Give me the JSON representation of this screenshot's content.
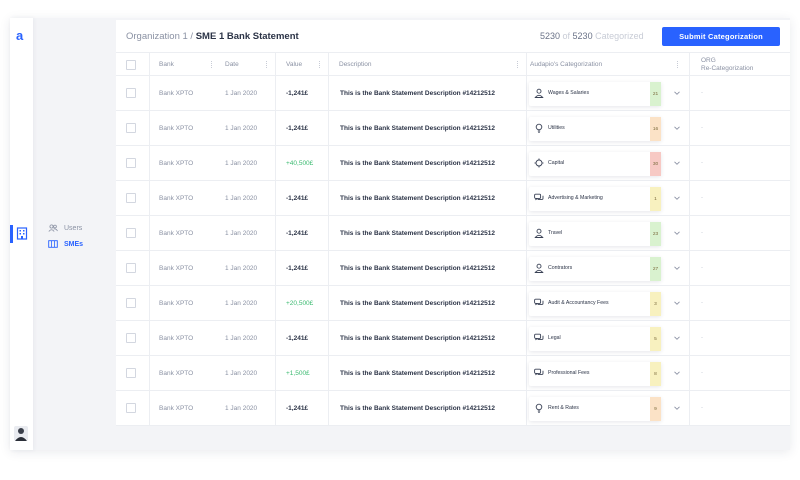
{
  "app": {
    "logo_text": "a"
  },
  "sidebar": {
    "icons": [
      "building-icon"
    ],
    "items": [
      {
        "label": "Users",
        "icon": "users-icon",
        "active": false
      },
      {
        "label": "SMEs",
        "icon": "smes-icon",
        "active": true
      }
    ]
  },
  "header": {
    "breadcrumb_org": "Organization 1",
    "breadcrumb_sep": " / ",
    "page_title": "SME 1 Bank Statement",
    "counter_categorized": "5230",
    "counter_of": " of ",
    "counter_total": "5230",
    "counter_suffix": " Categorized",
    "submit_label": "Submit Categorization"
  },
  "table": {
    "columns": {
      "bank": "Bank",
      "date": "Date",
      "value": "Value",
      "description": "Description",
      "audapio": "Audapio's Categorization",
      "org_line1": "ORG",
      "org_line2": "Re-Categorization"
    },
    "rows": [
      {
        "bank": "Bank XPTO",
        "date": "1 Jan 2020",
        "value": "-1,241£",
        "positive": false,
        "description": "This is the Bank Statement Description #14212512",
        "category": "Wages & Salaries",
        "icon": "person-icon",
        "score": "21",
        "score_color": "#d9f2cf",
        "org": "-"
      },
      {
        "bank": "Bank XPTO",
        "date": "1 Jan 2020",
        "value": "-1,241£",
        "positive": false,
        "description": "This is the Bank Statement Description #14212512",
        "category": "Utilities",
        "icon": "lightbulb-icon",
        "score": "16",
        "score_color": "#fbe2c6",
        "org": "-"
      },
      {
        "bank": "Bank XPTO",
        "date": "1 Jan 2020",
        "value": "+40,500£",
        "positive": true,
        "description": "This is the Bank Statement Description #14212512",
        "category": "Capital",
        "icon": "target-icon",
        "score": "30",
        "score_color": "#f7c9c4",
        "org": "-"
      },
      {
        "bank": "Bank XPTO",
        "date": "1 Jan 2020",
        "value": "-1,241£",
        "positive": false,
        "description": "This is the Bank Statement Description #14212512",
        "category": "Advertising & Marketing",
        "icon": "chat-icon",
        "score": "1",
        "score_color": "#f8f1bf",
        "org": "-"
      },
      {
        "bank": "Bank XPTO",
        "date": "1 Jan 2020",
        "value": "-1,241£",
        "positive": false,
        "description": "This is the Bank Statement Description #14212512",
        "category": "Travel",
        "icon": "person-icon",
        "score": "23",
        "score_color": "#d9f2cf",
        "org": "-"
      },
      {
        "bank": "Bank XPTO",
        "date": "1 Jan 2020",
        "value": "-1,241£",
        "positive": false,
        "description": "This is the Bank Statement Description #14212512",
        "category": "Contrators",
        "icon": "person-icon",
        "score": "27",
        "score_color": "#d9f2cf",
        "org": "-"
      },
      {
        "bank": "Bank XPTO",
        "date": "1 Jan 2020",
        "value": "+20,500£",
        "positive": true,
        "description": "This is the Bank Statement Description #14212512",
        "category": "Audit & Accountancy Fees",
        "icon": "chat-icon",
        "score": "3",
        "score_color": "#f8f1bf",
        "org": "-"
      },
      {
        "bank": "Bank XPTO",
        "date": "1 Jan 2020",
        "value": "-1,241£",
        "positive": false,
        "description": "This is the Bank Statement Description #14212512",
        "category": "Legal",
        "icon": "chat-icon",
        "score": "5",
        "score_color": "#f8f1bf",
        "org": "-"
      },
      {
        "bank": "Bank XPTO",
        "date": "1 Jan 2020",
        "value": "+1,500£",
        "positive": true,
        "description": "This is the Bank Statement Description #14212512",
        "category": "Professional Fees",
        "icon": "chat-icon",
        "score": "8",
        "score_color": "#f8f1bf",
        "org": "-"
      },
      {
        "bank": "Bank XPTO",
        "date": "1 Jan 2020",
        "value": "-1,241£",
        "positive": false,
        "description": "This is the Bank Statement Description #14212512",
        "category": "Rent & Rates",
        "icon": "lightbulb-icon",
        "score": "9",
        "score_color": "#fbe2c6",
        "org": "-"
      }
    ]
  },
  "colors": {
    "accent": "#2962ff",
    "positive": "#3dbb72"
  }
}
